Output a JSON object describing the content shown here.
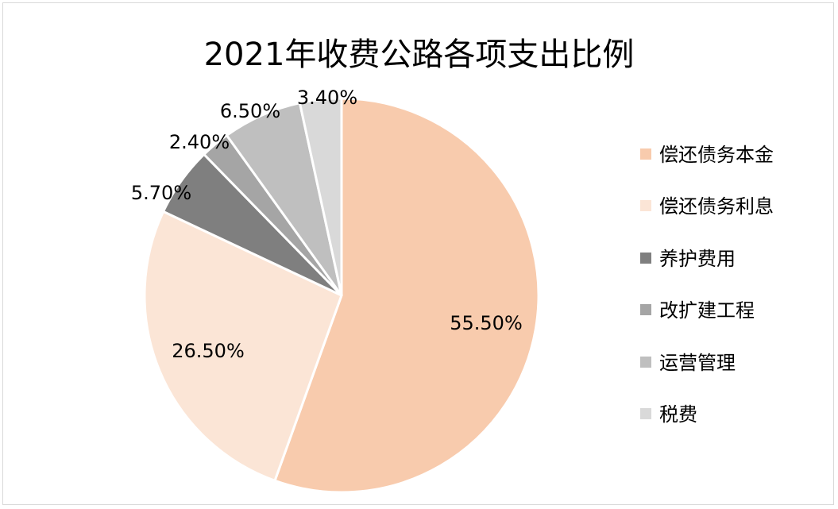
{
  "chart_data": {
    "type": "pie",
    "title": "2021年收费公路各项支出比例",
    "categories": [
      "偿还债务本金",
      "偿还债务利息",
      "养护费用",
      "改扩建工程",
      "运营管理",
      "税费"
    ],
    "values": [
      55.5,
      26.5,
      5.7,
      2.4,
      6.5,
      3.4
    ],
    "data_labels": [
      "55.50%",
      "26.50%",
      "5.70%",
      "2.40%",
      "6.50%",
      "3.40%"
    ],
    "colors": [
      "#f8cbad",
      "#fbe5d6",
      "#7f7f7f",
      "#a5a5a5",
      "#bfbfbf",
      "#d9d9d9"
    ],
    "start_angle_deg": 0,
    "direction": "clockwise",
    "legend_position": "right"
  }
}
